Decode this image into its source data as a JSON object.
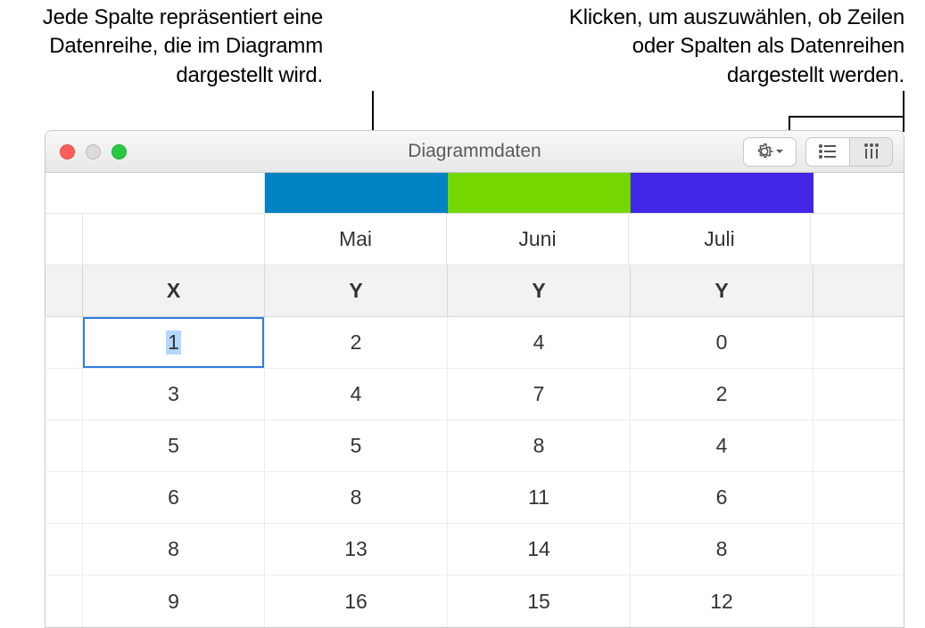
{
  "callouts": {
    "left": "Jede Spalte repräsentiert eine Datenreihe, die im Diagramm dargestellt wird.",
    "right": "Klicken, um auszuwählen, ob Zeilen oder Spalten als Datenreihen dargestellt werden."
  },
  "window": {
    "title": "Diagrammdaten",
    "traffic_colors": {
      "close": "#ff5f57",
      "min": "#dcdcdc",
      "max": "#28c840"
    },
    "toolbar": {
      "gear_icon": "gear-icon",
      "orientation": {
        "rows_active": false,
        "cols_active": true
      }
    }
  },
  "chart_data": {
    "type": "table",
    "series_colors": [
      "#0083c3",
      "#76d600",
      "#4127e5"
    ],
    "month_headers": [
      "Mai",
      "Juni",
      "Juli"
    ],
    "axis_headers": [
      "X",
      "Y",
      "Y",
      "Y"
    ],
    "rows": [
      [
        1,
        2,
        4,
        0
      ],
      [
        3,
        4,
        7,
        2
      ],
      [
        5,
        5,
        8,
        4
      ],
      [
        6,
        8,
        11,
        6
      ],
      [
        8,
        13,
        14,
        8
      ],
      [
        9,
        16,
        15,
        12
      ]
    ],
    "selected_cell": {
      "row": 0,
      "col": 0
    },
    "font_size_header": 23,
    "font_size_data": 23,
    "grid_color": "#ededed",
    "axis_row_bg": "#f2f2f2"
  }
}
